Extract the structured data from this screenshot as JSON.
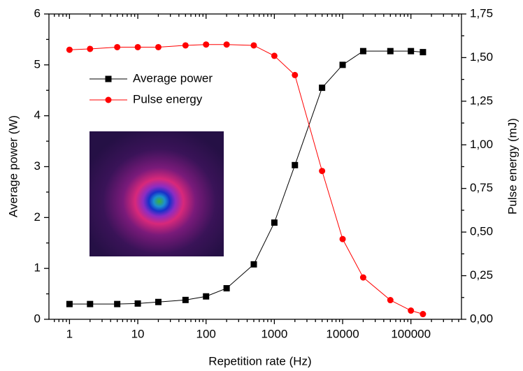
{
  "chart_data": {
    "type": "line",
    "xlabel": "Repetition rate (Hz)",
    "ylabel": "Average power (W)",
    "y2label": "Pulse energy (mJ)",
    "x": [
      1,
      2,
      5,
      10,
      20,
      50,
      100,
      200,
      500,
      1000,
      2000,
      5000,
      10000,
      20000,
      50000,
      100000,
      150000
    ],
    "xscale": "log",
    "xlim": [
      0.5,
      550000
    ],
    "xticks": [
      1,
      10,
      100,
      1000,
      10000,
      100000
    ],
    "ylim": [
      0,
      6
    ],
    "yticks": [
      0,
      1,
      2,
      3,
      4,
      5,
      6
    ],
    "y2lim": [
      0,
      1.75
    ],
    "y2ticks": [
      {
        "value": 0,
        "label": "0,00"
      },
      {
        "value": 0.25,
        "label": "0,25"
      },
      {
        "value": 0.5,
        "label": "0,50"
      },
      {
        "value": 0.75,
        "label": "0,75"
      },
      {
        "value": 1,
        "label": "1,00"
      },
      {
        "value": 1.25,
        "label": "1,25"
      },
      {
        "value": 1.5,
        "label": "1,50"
      },
      {
        "value": 1.75,
        "label": "1,75"
      }
    ],
    "legend": "upper left",
    "series": [
      {
        "name": "Average power",
        "color": "#000000",
        "marker": "square",
        "values": [
          0.3,
          0.3,
          0.3,
          0.31,
          0.34,
          0.38,
          0.45,
          0.61,
          1.08,
          1.9,
          3.03,
          4.55,
          5.0,
          5.27,
          5.27,
          5.27,
          5.25
        ]
      },
      {
        "name": "Pulse energy",
        "color": "#ff0000",
        "marker": "circle",
        "axis": "y2",
        "values": [
          1.545,
          1.55,
          1.56,
          1.56,
          1.56,
          1.57,
          1.575,
          1.575,
          1.57,
          1.51,
          1.4,
          0.85,
          0.46,
          0.24,
          0.11,
          0.05,
          0.03
        ]
      }
    ]
  }
}
